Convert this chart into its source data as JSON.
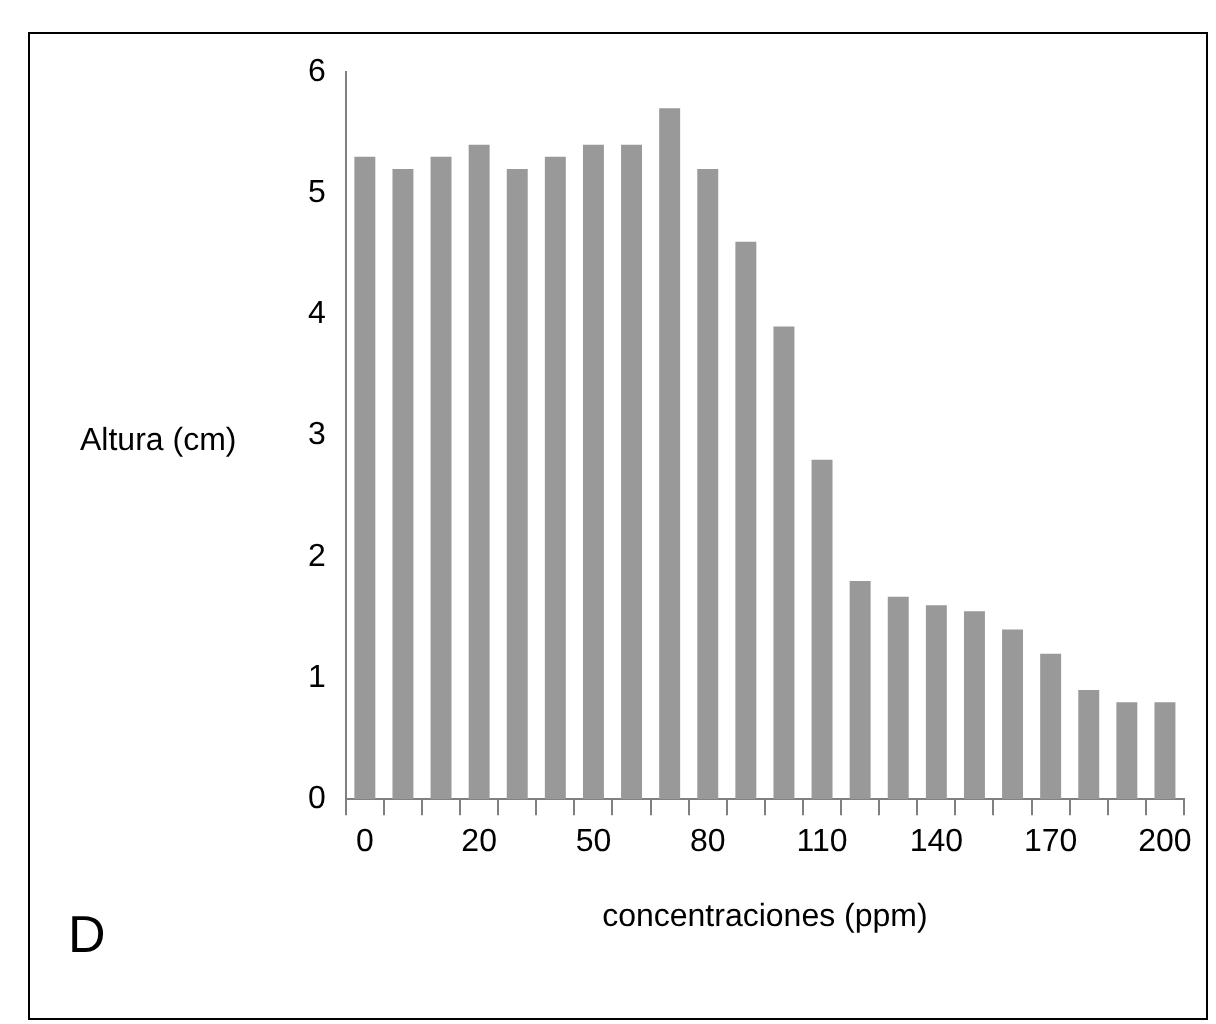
{
  "chart_data": {
    "type": "bar",
    "xlabel": "concentraciones (ppm)",
    "ylabel": "Altura (cm)",
    "categories": [
      "0",
      null,
      null,
      "20",
      null,
      null,
      "50",
      null,
      null,
      "80",
      null,
      null,
      "110",
      null,
      null,
      "140",
      null,
      null,
      "170",
      null,
      null,
      "200"
    ],
    "values": [
      5.3,
      5.2,
      5.3,
      5.4,
      5.2,
      5.3,
      5.4,
      5.4,
      5.7,
      5.2,
      4.6,
      3.9,
      2.8,
      1.8,
      1.67,
      1.6,
      1.55,
      1.4,
      1.2,
      0.9,
      0.8,
      0.8
    ],
    "color": "#999999",
    "ylim": [
      0,
      6
    ],
    "yticks": [
      0,
      1,
      2,
      3,
      4,
      5,
      6
    ],
    "annotations": [
      "D"
    ]
  }
}
